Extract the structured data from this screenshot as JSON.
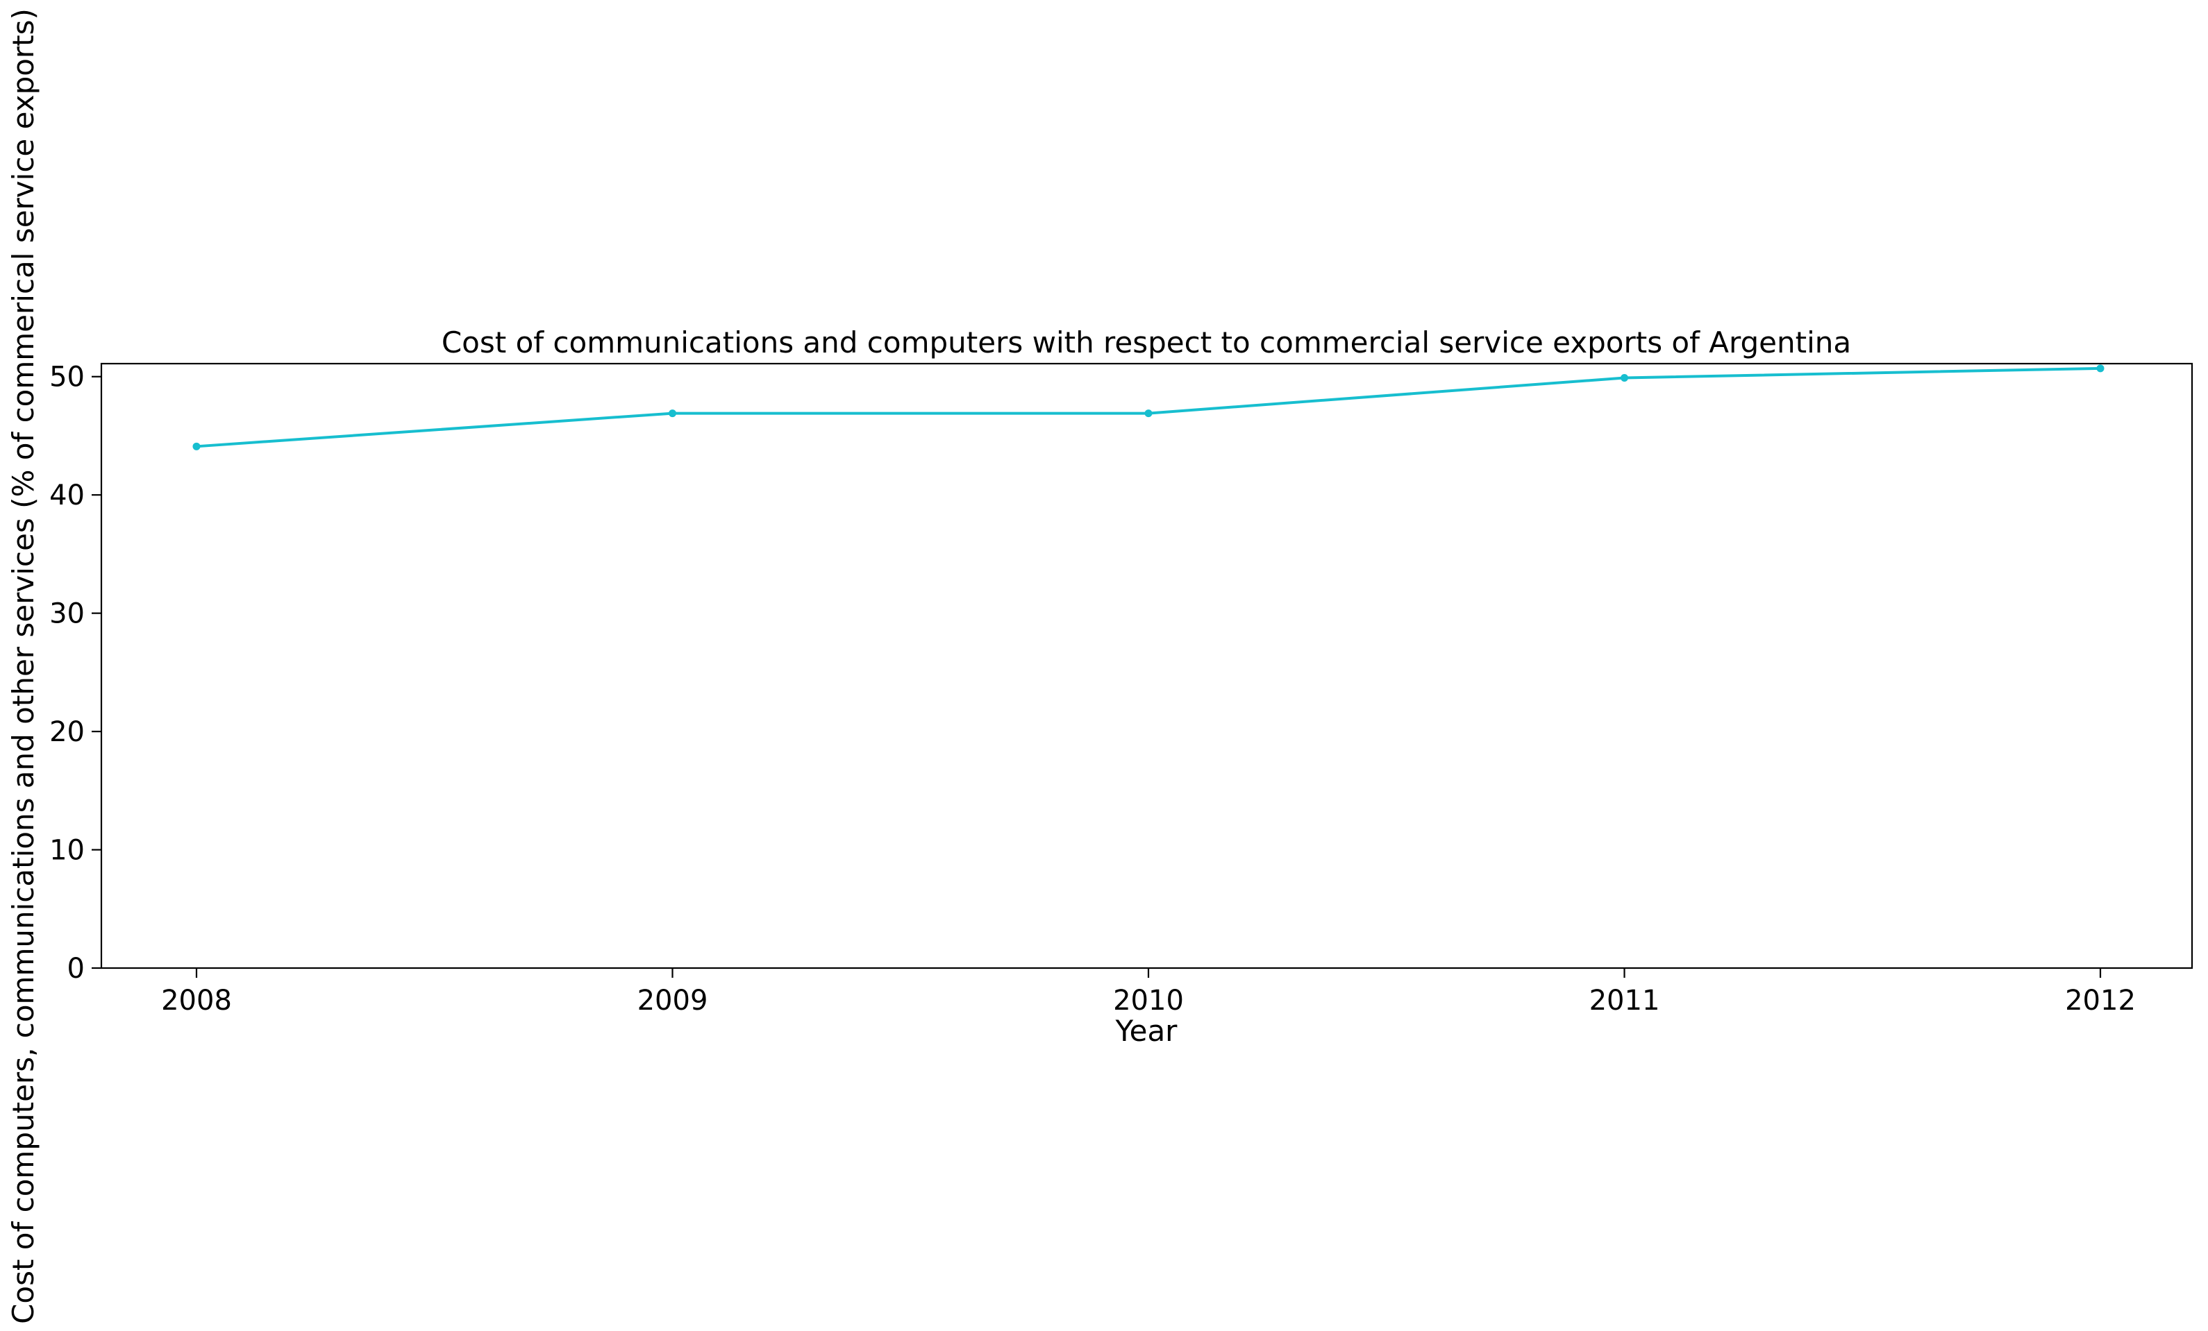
{
  "chart_data": {
    "type": "line",
    "title": "Cost of communications and computers with respect to commercial service exports of Argentina",
    "xlabel": "Year",
    "ylabel": "Cost of computers, communications and other services (% of commerical service exports)",
    "categories": [
      "2008",
      "2009",
      "2010",
      "2011",
      "2012"
    ],
    "series": [
      {
        "values": [
          44.1,
          46.9,
          46.9,
          49.9,
          50.7
        ],
        "color": "#17becf"
      }
    ],
    "ylim": [
      0,
      51.1
    ],
    "yticks": [
      0,
      10,
      20,
      30,
      40,
      50
    ],
    "grid": false,
    "legend": "none"
  }
}
